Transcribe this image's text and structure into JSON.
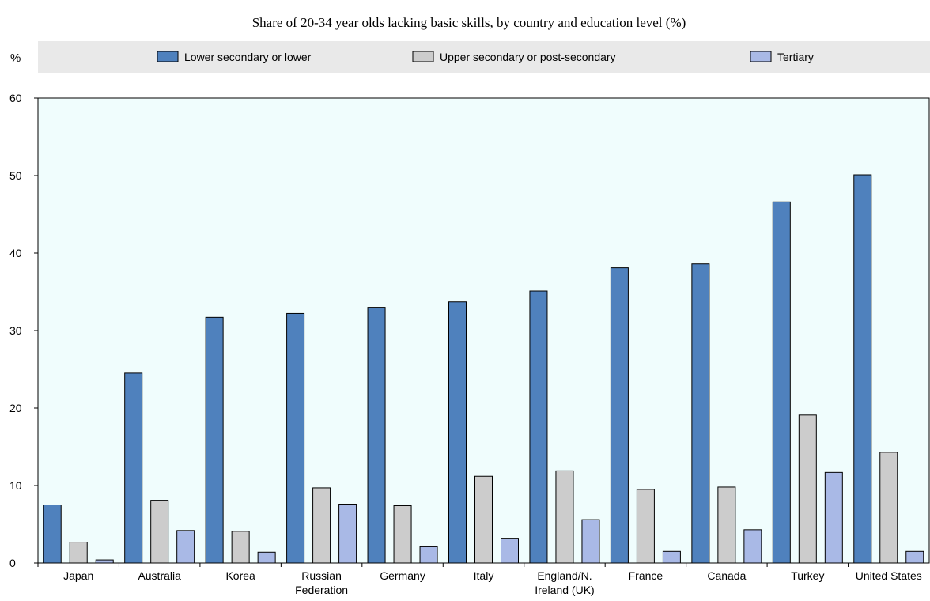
{
  "chart_data": {
    "type": "bar",
    "title": "Share of 20-34 year olds lacking basic skills, by country and education level (%)",
    "ylabel": "%",
    "xlabel": "",
    "ylim": [
      0,
      60
    ],
    "yticks": [
      0,
      10,
      20,
      30,
      40,
      50,
      60
    ],
    "grid": false,
    "legend_position": "top",
    "categories": [
      [
        "Japan"
      ],
      [
        "Australia"
      ],
      [
        "Korea"
      ],
      [
        "Russian",
        "Federation"
      ],
      [
        "Germany"
      ],
      [
        "Italy"
      ],
      [
        "England/N.",
        "Ireland (UK)"
      ],
      [
        "France"
      ],
      [
        "Canada"
      ],
      [
        "Turkey"
      ],
      [
        "United States"
      ]
    ],
    "series": [
      {
        "name": "Lower secondary or lower",
        "color": "#4f81bd",
        "values": [
          7.5,
          24.5,
          31.7,
          32.2,
          33.0,
          33.7,
          35.1,
          38.1,
          38.6,
          46.6,
          50.1
        ]
      },
      {
        "name": "Upper secondary or post-secondary",
        "color": "#cccccc",
        "values": [
          2.7,
          8.1,
          4.1,
          9.7,
          7.4,
          11.2,
          11.9,
          9.5,
          9.8,
          19.1,
          14.3
        ]
      },
      {
        "name": "Tertiary",
        "color": "#a9b9e6",
        "values": [
          0.4,
          4.2,
          1.4,
          7.6,
          2.1,
          3.2,
          5.6,
          1.5,
          4.3,
          11.7,
          1.5
        ]
      }
    ],
    "colors": {
      "plot_background": "#f0fdfd",
      "legend_background": "#e9e9e9",
      "bar_stroke": "#000000"
    }
  }
}
